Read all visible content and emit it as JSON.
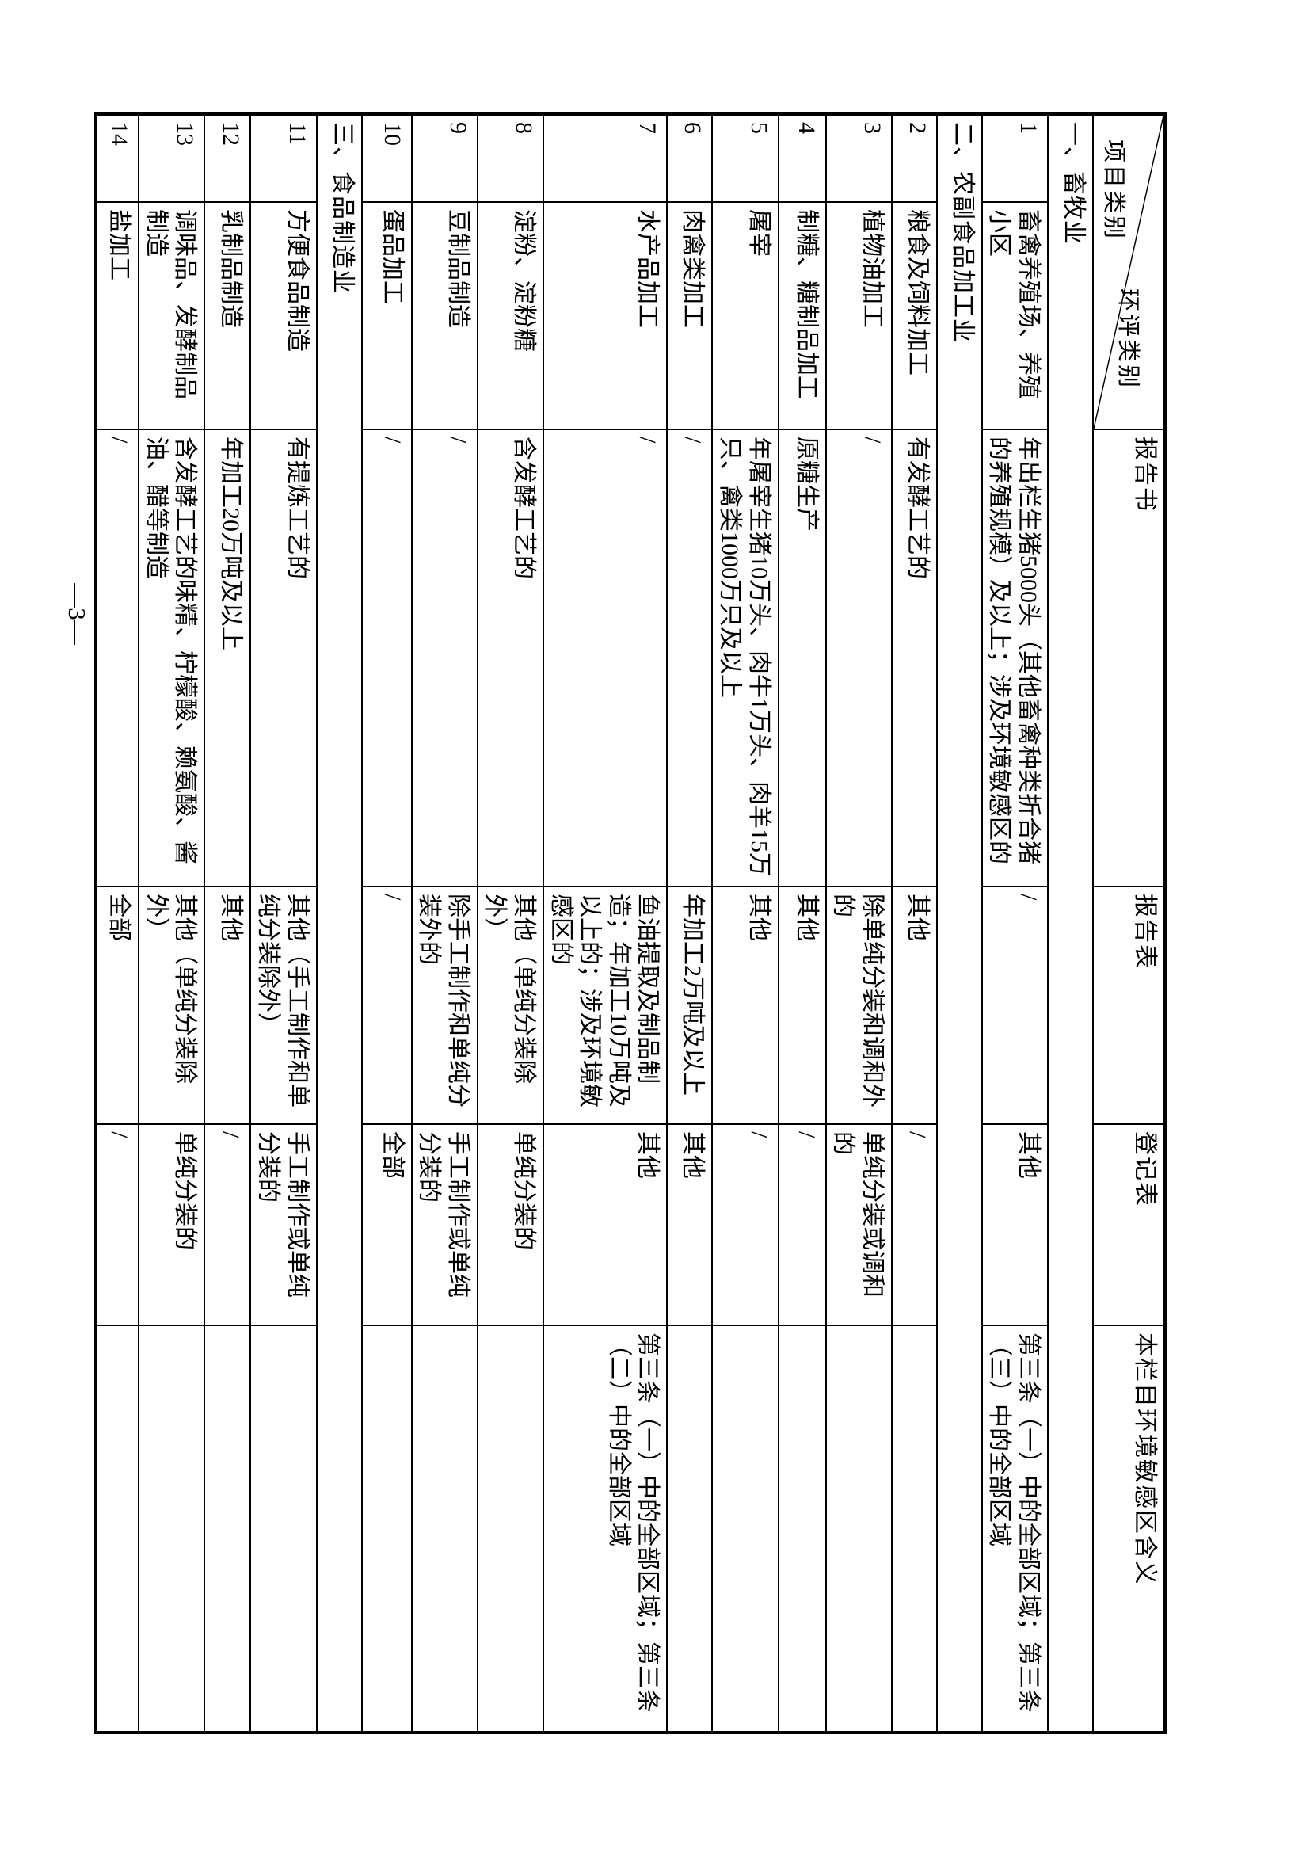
{
  "page": {
    "number_label": "—3—"
  },
  "table": {
    "diagonal": {
      "top_right": "环评类别",
      "bottom_left": "项目类别"
    },
    "columns": [
      "报告书",
      "报告表",
      "登记表",
      "本栏目环境敏感区含义"
    ],
    "sections": [
      {
        "title": "一、畜牧业",
        "rows": [
          {
            "num": "1",
            "name": "畜禽养殖场、养殖小区",
            "report_book": "年出栏生猪5000头（其他畜禽种类折合猪的养殖规模）及以上；涉及环境敏感区的",
            "report_form": "/",
            "registration_form": "其他",
            "sensitive_area": "第三条（一）中的全部区域；第三条（三）中的全部区域"
          }
        ]
      },
      {
        "title": "二、农副食品加工业",
        "rows": [
          {
            "num": "2",
            "name": "粮食及饲料加工",
            "report_book": "有发酵工艺的",
            "report_form": "其他",
            "registration_form": "/",
            "sensitive_area": ""
          },
          {
            "num": "3",
            "name": "植物油加工",
            "report_book": "/",
            "report_form": "除单纯分装和调和外的",
            "registration_form": "单纯分装或调和的",
            "sensitive_area": ""
          },
          {
            "num": "4",
            "name": "制糖、糖制品加工",
            "report_book": "原糖生产",
            "report_form": "其他",
            "registration_form": "/",
            "sensitive_area": ""
          },
          {
            "num": "5",
            "name": "屠宰",
            "report_book": "年屠宰生猪10万头、肉牛1万头、肉羊15万只、禽类1000万只及以上",
            "report_form": "其他",
            "registration_form": "/",
            "sensitive_area": ""
          },
          {
            "num": "6",
            "name": "肉禽类加工",
            "report_book": "/",
            "report_form": "年加工2万吨及以上",
            "registration_form": "其他",
            "sensitive_area": ""
          },
          {
            "num": "7",
            "name": "水产品加工",
            "report_book": "/",
            "report_form": "鱼油提取及制品制造；年加工10万吨及以上的；涉及环境敏感区的",
            "registration_form": "其他",
            "sensitive_area": "第三条（一）中的全部区域；第三条（二）中的全部区域"
          },
          {
            "num": "8",
            "name": "淀粉、淀粉糖",
            "report_book": "含发酵工艺的",
            "report_form": "其他（单纯分装除外）",
            "registration_form": "单纯分装的",
            "sensitive_area": ""
          },
          {
            "num": "9",
            "name": "豆制品制造",
            "report_book": "/",
            "report_form": "除手工制作和单纯分装外的",
            "registration_form": "手工制作或单纯分装的",
            "sensitive_area": ""
          },
          {
            "num": "10",
            "name": "蛋品加工",
            "report_book": "/",
            "report_form": "/",
            "registration_form": "全部",
            "sensitive_area": ""
          }
        ]
      },
      {
        "title": "三、食品制造业",
        "rows": [
          {
            "num": "11",
            "name": "方便食品制造",
            "report_book": "有提炼工艺的",
            "report_form": "其他（手工制作和单纯分装除外）",
            "registration_form": "手工制作或单纯分装的",
            "sensitive_area": ""
          },
          {
            "num": "12",
            "name": "乳制品制造",
            "report_book": "年加工20万吨及以上",
            "report_form": "其他",
            "registration_form": "/",
            "sensitive_area": ""
          },
          {
            "num": "13",
            "name": "调味品、发酵制品制造",
            "report_book": "含发酵工艺的味精、柠檬酸、赖氨酸、酱油、醋等制造",
            "report_form": "其他（单纯分装除外）",
            "registration_form": "单纯分装的",
            "sensitive_area": ""
          },
          {
            "num": "14",
            "name": "盐加工",
            "report_book": "/",
            "report_form": "全部",
            "registration_form": "/",
            "sensitive_area": ""
          }
        ]
      }
    ]
  }
}
